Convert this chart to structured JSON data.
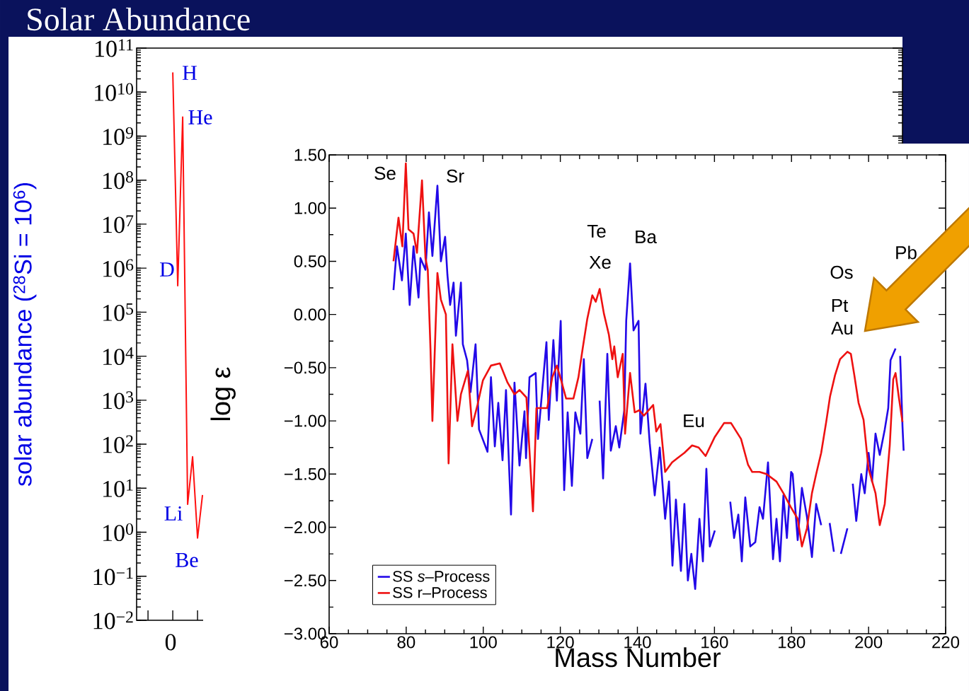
{
  "chart_data": [
    {
      "type": "line",
      "ylabel": "solar abundance  ($^{28}$Si = 10$^{6}$)",
      "log": "y",
      "marker": "none",
      "line_style": "solid",
      "categories": [
        null,
        null,
        null,
        null,
        null,
        null,
        null
      ],
      "ylim": [
        0.01,
        100000000000
      ],
      "yticks": [
        {
          "value": 0.01,
          "label": "10$^{−2}$"
        },
        {
          "value": 0.1,
          "label": "10$^{−1}$"
        },
        {
          "value": 1,
          "label": "10$^{0}$"
        },
        {
          "value": 10,
          "label": "10$^{1}$"
        },
        {
          "value": 100,
          "label": "10$^{2}$"
        },
        {
          "value": 1000,
          "label": "10$^{3}$"
        },
        {
          "value": 10000,
          "label": "10$^{4}$"
        },
        {
          "value": 100000,
          "label": "10$^{5}$"
        },
        {
          "value": 1000000,
          "label": "10$^{6}$"
        },
        {
          "value": 10000000,
          "label": "10$^{7}$"
        },
        {
          "value": 100000000,
          "label": "10$^{8}$"
        },
        {
          "value": 1000000000,
          "label": "10$^{9}$"
        },
        {
          "value": 10000000000,
          "label": "10$^{10}$"
        },
        {
          "value": 100000000000,
          "label": "10$^{11}$"
        }
      ],
      "series": [
        {
          "color": "#ff1010",
          "values": [
            28000000000,
            400000,
            2700000000,
            4.3,
            52,
            0.74,
            7
          ]
        }
      ],
      "annotations": [
        "H",
        "He",
        "D",
        "Li",
        "Be",
        "0"
      ]
    },
    {
      "type": "line",
      "title": "Solar Abundance",
      "xlabel": "Mass Number",
      "ylabel": "log ε",
      "legend": "bottom left",
      "marker": "none",
      "line_style": "solid",
      "xlim": [
        60,
        220
      ],
      "xticks": [
        60,
        80,
        100,
        120,
        140,
        160,
        180,
        200,
        220
      ],
      "ylim": [
        -3,
        1.5
      ],
      "yticks": [
        {
          "value": -3,
          "label": "−3.00"
        },
        {
          "value": -2.5,
          "label": "−2.50"
        },
        {
          "value": -2,
          "label": "−2.00"
        },
        {
          "value": -1.5,
          "label": "−1.50"
        },
        {
          "value": -1,
          "label": "−1.00"
        },
        {
          "value": -0.5,
          "label": "−0.50"
        },
        {
          "value": 0,
          "label": "0.00"
        },
        {
          "value": 0.5,
          "label": "0.50"
        },
        {
          "value": 1,
          "label": "1.00"
        },
        {
          "value": 1.5,
          "label": "1.50"
        }
      ],
      "series": [
        {
          "name": "SS *s*–Process",
          "color": "#2208e8",
          "x": [
            76.7,
            77.6,
            78.9,
            79.9,
            80.9,
            81.9,
            83.2,
            83.7,
            85,
            85.9,
            86.8,
            88.1,
            89,
            90.1,
            90.7,
            91.4,
            92.3,
            92.9,
            94.2,
            94.7,
            95.8,
            96.7,
            98,
            98.9,
            101.1,
            102,
            103,
            103.9,
            105,
            105.9,
            107.2,
            108.1,
            109.4,
            110.7,
            111.1,
            112,
            113.6,
            114.2,
            115.5,
            116.4,
            117,
            118.2,
            119.1,
            120.1,
            121,
            121.9,
            123,
            123.9,
            125.2,
            126.1,
            127,
            128.3,
            129.2,
            130.2,
            131.1,
            132.2,
            133.1,
            134.4,
            135.3,
            136.6,
            137.1,
            138.1,
            139,
            140.3,
            140.8,
            142.1,
            143.2,
            144.5,
            145.8,
            147.2,
            148.2,
            149.1,
            150,
            151.3,
            152.2,
            153.1,
            154,
            155,
            156.1,
            157,
            157.9,
            158.8,
            160.1,
            162,
            164.1,
            165.1,
            166.2,
            167.1,
            168,
            169.3,
            170.6,
            171.7,
            172.6,
            173.9,
            175.2,
            176.1,
            177,
            177.9,
            178.8,
            179.9,
            180.3,
            181.6,
            182.7,
            184,
            185.3,
            186.4,
            187.7,
            188.8,
            189.9,
            191,
            192,
            192.8,
            194.5,
            195.2,
            195.9,
            196.8,
            198.1,
            199,
            200,
            200.9,
            201.8,
            202.9,
            204.2,
            205.1,
            205.7,
            207,
            207.5,
            208.2,
            208.8,
            209.1
          ],
          "values": [
            0.23,
            0.64,
            0.32,
            0.76,
            0.09,
            0.64,
            0.16,
            0.53,
            0.42,
            0.96,
            0.55,
            1.21,
            0.5,
            0.73,
            0.37,
            0.09,
            0.3,
            -0.2,
            0.3,
            -0.28,
            -0.43,
            -0.73,
            -0.28,
            -1.08,
            -1.29,
            -0.59,
            -1.24,
            -0.83,
            -1.37,
            -0.71,
            -1.88,
            -0.64,
            -1.42,
            -0.91,
            -1.35,
            -0.59,
            -0.55,
            -1.17,
            -0.63,
            -0.26,
            -0.99,
            -0.24,
            -0.81,
            -0.06,
            -1.65,
            -0.92,
            -1.61,
            -0.92,
            -1.12,
            -0.42,
            -1.35,
            -1.17,
            null,
            -0.81,
            -1.54,
            -0.37,
            -1.28,
            -1.05,
            -1.25,
            -0.9,
            -0.06,
            0.48,
            -0.15,
            -0.06,
            -1.12,
            -0.65,
            -1.21,
            -1.7,
            -1.25,
            -1.92,
            -1.57,
            -2.36,
            -1.74,
            -2.41,
            -1.78,
            -2.5,
            -2.25,
            -2.58,
            -1.92,
            -2.32,
            -1.45,
            -2.18,
            -2.03,
            null,
            -1.76,
            -2.1,
            -1.88,
            -2.32,
            -1.72,
            -2.18,
            -2.14,
            -1.81,
            -1.92,
            -1.39,
            -2.3,
            -1.92,
            -2.32,
            -1.7,
            -2.1,
            -1.48,
            -1.5,
            -2.12,
            -1.63,
            -1.9,
            -2.28,
            -1.78,
            -1.98,
            null,
            -1.96,
            -2.23,
            null,
            -2.25,
            -2.01,
            null,
            -1.59,
            -1.94,
            -1.5,
            -1.68,
            -1.3,
            -1.57,
            -1.12,
            -1.32,
            -1.08,
            -0.88,
            -0.43,
            -0.32,
            null,
            -0.39,
            -1.05,
            -1.28
          ]
        },
        {
          "name": "SS r–Process",
          "color": "#ee1111",
          "x": [
            76.7,
            78,
            79,
            79.9,
            80.6,
            81.9,
            82.8,
            84.1,
            85,
            85.6,
            86.3,
            86.8,
            88.1,
            89,
            90.3,
            91,
            92,
            93.3,
            94.2,
            96,
            97.1,
            98.5,
            99.9,
            102,
            104.3,
            106.3,
            108.1,
            109.4,
            111.2,
            112.9,
            113.8,
            116.6,
            117.9,
            119.1,
            120.3,
            121.5,
            123.4,
            124.7,
            125.8,
            127,
            128.3,
            129.2,
            130.2,
            131.3,
            132.6,
            133.5,
            134,
            134.9,
            136.2,
            136.8,
            138.1,
            139.3,
            140.5,
            141.7,
            144.1,
            144.9,
            146,
            147.2,
            149,
            150.4,
            152.2,
            154.2,
            155.9,
            157.7,
            160.1,
            162.5,
            164.3,
            166.9,
            168.7,
            169.8,
            171.7,
            173.5,
            176.1,
            177.9,
            179.8,
            181.6,
            182.7,
            184,
            185.3,
            186.4,
            187.7,
            189,
            190,
            191.3,
            192.6,
            194.5,
            195.4,
            196.3,
            197.4,
            198.7,
            200,
            201.8,
            202.9,
            204.2,
            205.5,
            206.4,
            207,
            207.9,
            208.8
          ],
          "values": [
            0.5,
            0.91,
            0.64,
            1.42,
            0.8,
            0.76,
            0.58,
            1.26,
            0.53,
            0.42,
            -0.32,
            -1.0,
            0.39,
            0.14,
            0,
            -1.4,
            -0.28,
            -1.0,
            -0.75,
            -0.53,
            -1.05,
            -0.85,
            -0.62,
            -0.48,
            -0.46,
            -0.64,
            -0.75,
            -0.71,
            -0.78,
            -1.85,
            -0.88,
            -0.88,
            -0.59,
            -0.48,
            -0.63,
            -0.79,
            -0.79,
            -0.59,
            -0.32,
            -0.04,
            0.18,
            0.12,
            0.24,
            0.01,
            -0.19,
            -0.42,
            -0.3,
            -0.59,
            -0.37,
            -1.12,
            -0.55,
            -0.92,
            -0.9,
            -0.95,
            -0.85,
            -1.1,
            -1.03,
            -1.48,
            -1.39,
            -1.35,
            -1.3,
            -1.23,
            -1.25,
            -1.33,
            -1.15,
            -1.02,
            -1.02,
            -1.17,
            -1.41,
            -1.48,
            -1.48,
            -1.5,
            -1.57,
            -1.68,
            -1.81,
            -1.92,
            -2.18,
            -2.01,
            -1.68,
            -1.5,
            -1.3,
            -1.01,
            -0.77,
            -0.57,
            -0.42,
            -0.35,
            -0.37,
            -0.57,
            -0.83,
            -0.99,
            -1.45,
            -1.68,
            -1.98,
            -1.78,
            -1.23,
            -0.61,
            -0.55,
            -0.79,
            -1.01
          ]
        }
      ],
      "annotations": [
        "Se",
        "Sr",
        "Te",
        "Xe",
        "Ba",
        "Eu",
        "Os",
        "Pt",
        "Au",
        "Pb"
      ]
    }
  ]
}
